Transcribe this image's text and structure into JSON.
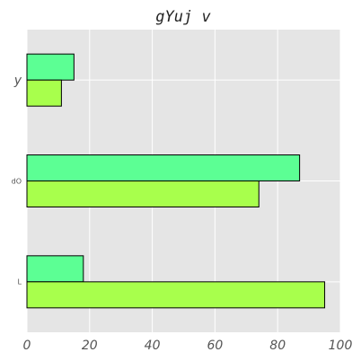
{
  "chart_data": {
    "type": "bar",
    "orientation": "horizontal",
    "title": "gYuj v",
    "xlabel": "",
    "ylabel": "",
    "xlim": [
      0,
      100
    ],
    "xticks": [
      "0",
      "20",
      "40",
      "60",
      "80",
      "100"
    ],
    "categories": [
      "y",
      "dO",
      "L"
    ],
    "series": [
      {
        "values": [
          15,
          87,
          18
        ],
        "color": "#5cff94"
      },
      {
        "values": [
          11,
          74,
          95
        ],
        "color": "#a8ff4c"
      }
    ],
    "grid": true,
    "plot_background": "#e5e5e5",
    "grid_color": "#ffffff"
  }
}
